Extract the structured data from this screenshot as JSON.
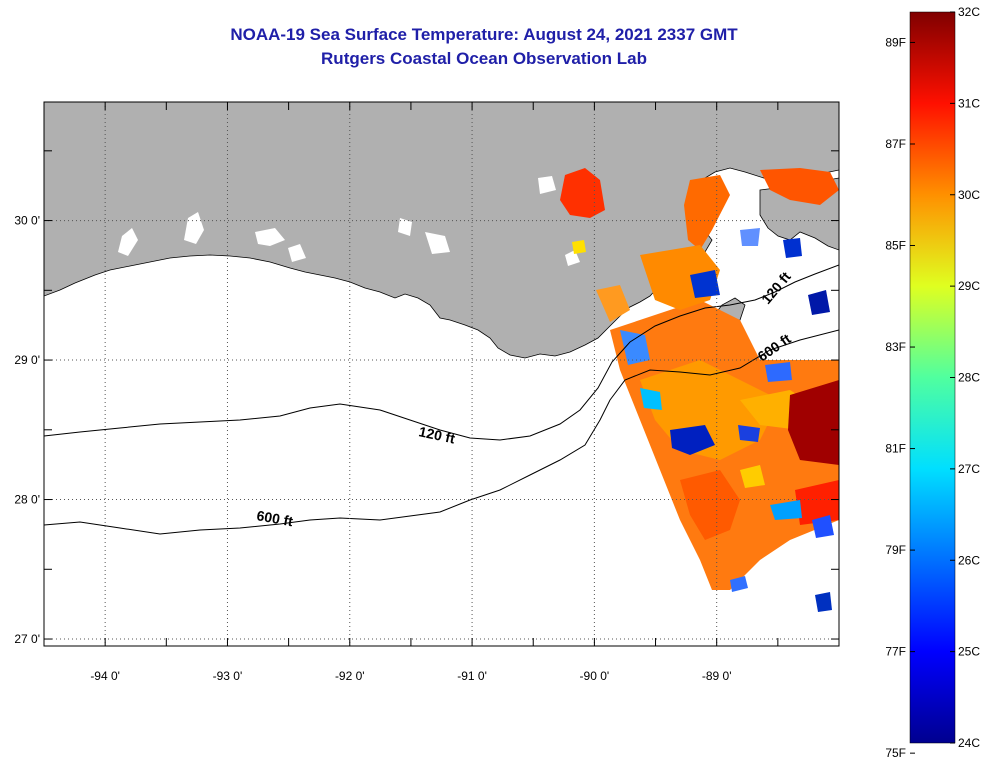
{
  "title": {
    "line1": "NOAA-19 Sea Surface Temperature:  August 24, 2021 2337 GMT",
    "line2": "Rutgers Coastal Ocean Observation Lab"
  },
  "map": {
    "lon_ticks": [
      {
        "value": -94,
        "label": "-94 0'"
      },
      {
        "value": -93,
        "label": "-93 0'"
      },
      {
        "value": -92,
        "label": "-92 0'"
      },
      {
        "value": -91,
        "label": "-91 0'"
      },
      {
        "value": -90,
        "label": "-90 0'"
      },
      {
        "value": -89,
        "label": "-89 0'"
      }
    ],
    "lat_ticks": [
      {
        "value": 30,
        "label": "30 0'"
      },
      {
        "value": 29,
        "label": "29 0'"
      },
      {
        "value": 28,
        "label": "28 0'"
      },
      {
        "value": 27,
        "label": "27 0'"
      }
    ],
    "lon_range": [
      -94.5,
      -88.0
    ],
    "lat_range": [
      26.95,
      30.85
    ],
    "grid": "dotted",
    "contours": [
      {
        "label": "120 ft"
      },
      {
        "label": "600 ft"
      },
      {
        "label": "120 ft"
      },
      {
        "label": "600 ft"
      }
    ],
    "colors": {
      "land": "#b0b0b0",
      "ocean": "#ffffff",
      "title": "#1f1fa8"
    }
  },
  "colorbar": {
    "celsius_labels": [
      "32C",
      "31C",
      "30C",
      "29C",
      "28C",
      "27C",
      "26C",
      "25C",
      "24C"
    ],
    "fahrenheit_labels": [
      "89F",
      "87F",
      "85F",
      "83F",
      "81F",
      "79F",
      "77F",
      "75F"
    ],
    "range_c": [
      24,
      32
    ],
    "colormap": "jet"
  }
}
